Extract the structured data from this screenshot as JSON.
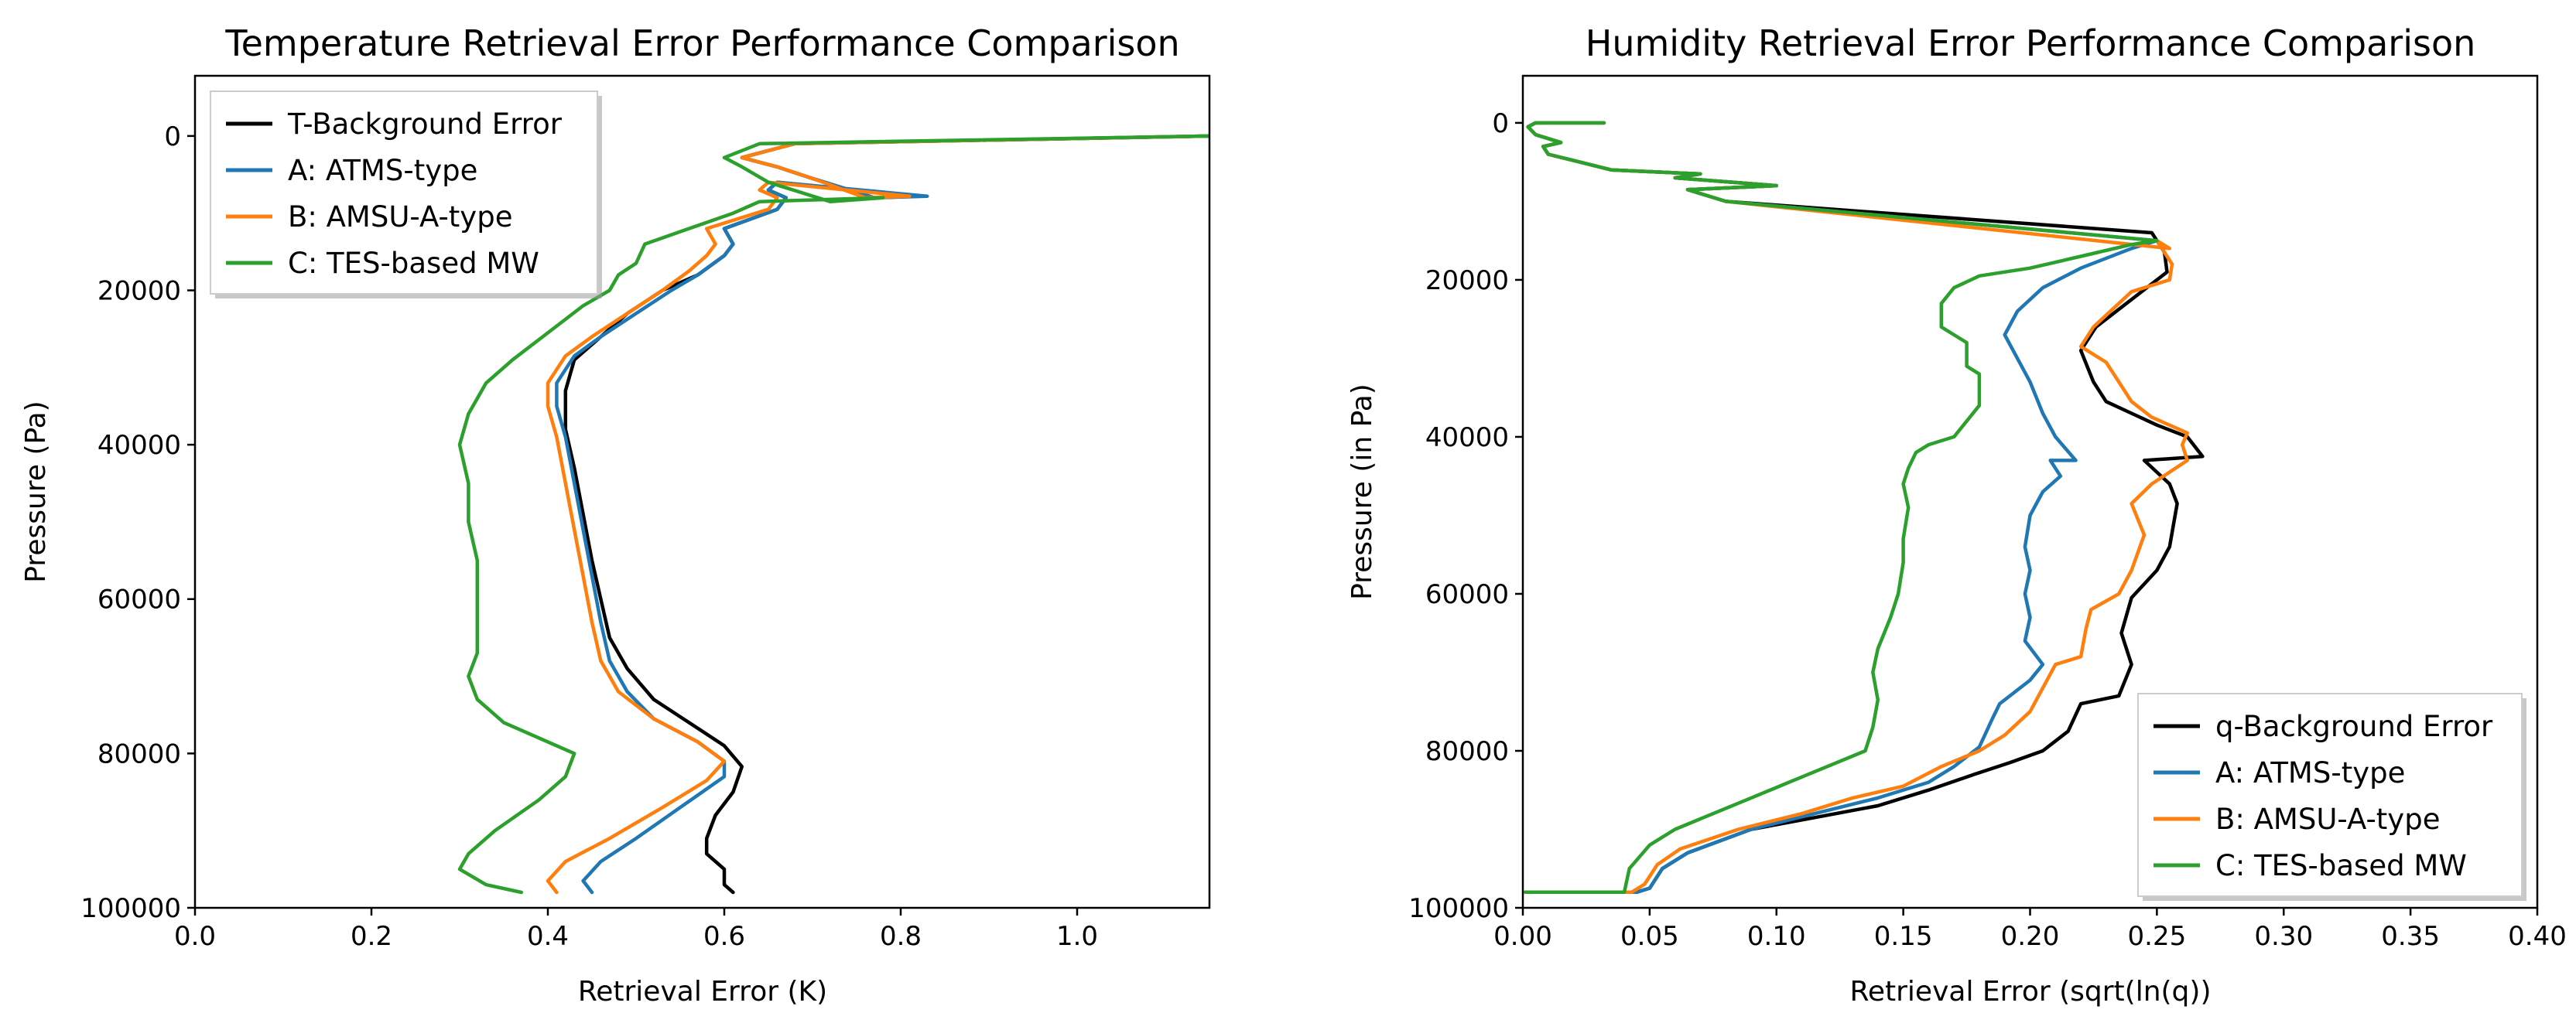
{
  "chart_data": [
    {
      "type": "line",
      "title": "Temperature Retrieval Error Performance Comparison",
      "xlabel": "Retrieval Error (K)",
      "ylabel": "Pressure (Pa)",
      "xlim": [
        0.0,
        1.15
      ],
      "ylim": [
        100000,
        -7800
      ],
      "y_inverted": true,
      "xticks": [
        0.0,
        0.2,
        0.4,
        0.6,
        0.8,
        1.0
      ],
      "xtick_labels": [
        "0.0",
        "0.2",
        "0.4",
        "0.6",
        "0.8",
        "1.0"
      ],
      "yticks": [
        0,
        20000,
        40000,
        60000,
        80000,
        100000
      ],
      "ytick_labels": [
        "0",
        "20000",
        "40000",
        "60000",
        "80000",
        "100000"
      ],
      "legend_position": "upper left",
      "series": [
        {
          "name": "T-Background Error",
          "color": "#000000",
          "x": [
            0.61,
            0.6,
            0.6,
            0.58,
            0.58,
            0.59,
            0.61,
            0.62,
            0.6,
            0.56,
            0.52,
            0.49,
            0.47,
            0.46,
            0.45,
            0.44,
            0.43,
            0.42,
            0.42,
            0.43,
            0.46,
            0.49,
            0.53,
            0.57,
            0.6,
            0.61,
            0.6,
            0.66,
            0.67,
            0.65,
            0.66,
            0.82,
            0.77,
            0.7,
            0.66,
            0.62,
            0.68,
            1.15
          ],
          "y": [
            98000,
            97000,
            95000,
            93000,
            91000,
            88000,
            85000,
            81700,
            79000,
            76000,
            73000,
            69000,
            65000,
            60000,
            55000,
            49000,
            43000,
            38000,
            33000,
            29000,
            26000,
            23000,
            20000,
            18000,
            15500,
            14000,
            12000,
            9500,
            8000,
            7000,
            6000,
            7800,
            8000,
            5500,
            4000,
            2800,
            1000,
            0
          ]
        },
        {
          "name": "A: ATMS-type",
          "color": "#1f77b4",
          "x": [
            0.45,
            0.44,
            0.46,
            0.5,
            0.55,
            0.6,
            0.6,
            0.57,
            0.52,
            0.49,
            0.47,
            0.46,
            0.45,
            0.44,
            0.43,
            0.42,
            0.41,
            0.41,
            0.43,
            0.46,
            0.5,
            0.54,
            0.57,
            0.6,
            0.61,
            0.6,
            0.66,
            0.67,
            0.65,
            0.66,
            0.83,
            0.77,
            0.7,
            0.66,
            0.62,
            0.68,
            1.15
          ],
          "y": [
            98000,
            96500,
            94000,
            91000,
            87000,
            83000,
            81000,
            78500,
            75500,
            72000,
            68000,
            63000,
            57000,
            51000,
            45000,
            39000,
            35000,
            32000,
            28500,
            26000,
            23000,
            20000,
            18000,
            15500,
            14000,
            12000,
            9500,
            8000,
            7000,
            6000,
            7800,
            8000,
            5500,
            4000,
            2800,
            1000,
            0
          ]
        },
        {
          "name": "B: AMSU-A-type",
          "color": "#ff7f0e",
          "x": [
            0.41,
            0.4,
            0.42,
            0.47,
            0.53,
            0.58,
            0.6,
            0.57,
            0.52,
            0.48,
            0.46,
            0.45,
            0.44,
            0.43,
            0.42,
            0.41,
            0.4,
            0.4,
            0.42,
            0.45,
            0.49,
            0.53,
            0.56,
            0.58,
            0.59,
            0.58,
            0.65,
            0.66,
            0.64,
            0.65,
            0.81,
            0.76,
            0.7,
            0.66,
            0.62,
            0.68,
            1.15
          ],
          "y": [
            98000,
            96500,
            94000,
            91000,
            87000,
            83500,
            81000,
            78500,
            75500,
            72000,
            68000,
            63000,
            57000,
            51000,
            45000,
            39000,
            35000,
            32000,
            28500,
            26000,
            23000,
            20000,
            17500,
            15500,
            14000,
            12000,
            9500,
            8000,
            7000,
            6000,
            7800,
            8000,
            5500,
            4000,
            2800,
            1000,
            0
          ]
        },
        {
          "name": "C: TES-based MW",
          "color": "#2ca02c",
          "x": [
            0.37,
            0.33,
            0.3,
            0.31,
            0.34,
            0.39,
            0.42,
            0.43,
            0.39,
            0.35,
            0.32,
            0.31,
            0.32,
            0.32,
            0.32,
            0.32,
            0.31,
            0.31,
            0.3,
            0.31,
            0.33,
            0.36,
            0.4,
            0.44,
            0.47,
            0.48,
            0.5,
            0.51,
            0.56,
            0.61,
            0.64,
            0.78,
            0.72,
            0.65,
            0.62,
            0.6,
            0.64,
            1.15
          ],
          "y": [
            98000,
            97000,
            95000,
            93000,
            90000,
            86000,
            83000,
            80000,
            78000,
            76000,
            73000,
            70000,
            67000,
            64000,
            60000,
            55000,
            50000,
            45000,
            40000,
            36000,
            32000,
            29000,
            25500,
            22000,
            20000,
            18000,
            16500,
            14000,
            12000,
            10000,
            8500,
            8000,
            8500,
            6000,
            4000,
            2800,
            1000,
            0
          ]
        }
      ]
    },
    {
      "type": "line",
      "title": "Humidity Retrieval Error Performance Comparison",
      "xlabel": "Retrieval Error (sqrt(ln(q))",
      "ylabel": "Pressure (in Pa)",
      "xlim": [
        0.0,
        0.4
      ],
      "ylim": [
        100000,
        -6000
      ],
      "y_inverted": true,
      "xticks": [
        0.0,
        0.05,
        0.1,
        0.15,
        0.2,
        0.25,
        0.3,
        0.35,
        0.4
      ],
      "xtick_labels": [
        "0.00",
        "0.05",
        "0.10",
        "0.15",
        "0.20",
        "0.25",
        "0.30",
        "0.35",
        "0.40"
      ],
      "yticks": [
        0,
        20000,
        40000,
        60000,
        80000,
        100000
      ],
      "ytick_labels": [
        "0",
        "20000",
        "40000",
        "60000",
        "80000",
        "100000"
      ],
      "legend_position": "lower right",
      "series": [
        {
          "name": "q-Background Error",
          "color": "#000000",
          "x": [
            0.001,
            0.045,
            0.05,
            0.055,
            0.065,
            0.09,
            0.115,
            0.14,
            0.16,
            0.178,
            0.192,
            0.205,
            0.215,
            0.22,
            0.235,
            0.24,
            0.236,
            0.24,
            0.25,
            0.255,
            0.258,
            0.255,
            0.25,
            0.245,
            0.268,
            0.262,
            0.25,
            0.24,
            0.23,
            0.225,
            0.22,
            0.226,
            0.254,
            0.253,
            0.248,
            0.08,
            0.07,
            0.065,
            0.1,
            0.06,
            0.07,
            0.035,
            0.01,
            0.008,
            0.015,
            0.005,
            0.002,
            0.005,
            0.032
          ],
          "y": [
            98000,
            98000,
            97500,
            95000,
            93000,
            90000,
            88500,
            87000,
            85000,
            83000,
            81500,
            80000,
            77500,
            74000,
            73000,
            69000,
            65000,
            60500,
            57000,
            54000,
            48500,
            46000,
            44500,
            43000,
            42500,
            40000,
            38500,
            37000,
            35500,
            33000,
            29000,
            26000,
            19000,
            16500,
            14000,
            10000,
            9000,
            8500,
            8000,
            7000,
            6500,
            6000,
            4000,
            3000,
            2500,
            1500,
            500,
            0,
            0
          ]
        },
        {
          "name": "A: ATMS-type",
          "color": "#1f77b4",
          "x": [
            0.001,
            0.045,
            0.05,
            0.055,
            0.065,
            0.09,
            0.115,
            0.14,
            0.16,
            0.17,
            0.18,
            0.185,
            0.188,
            0.2,
            0.205,
            0.198,
            0.2,
            0.198,
            0.2,
            0.198,
            0.2,
            0.205,
            0.212,
            0.208,
            0.218,
            0.21,
            0.205,
            0.2,
            0.195,
            0.19,
            0.195,
            0.205,
            0.22,
            0.24,
            0.25,
            0.08,
            0.07,
            0.065,
            0.1,
            0.06,
            0.07,
            0.035,
            0.01,
            0.008,
            0.015,
            0.005,
            0.002,
            0.005,
            0.032
          ],
          "y": [
            98000,
            98000,
            97500,
            95000,
            93000,
            90000,
            88000,
            86000,
            84000,
            82000,
            79500,
            76000,
            74000,
            71000,
            69000,
            66000,
            63000,
            60000,
            57000,
            54000,
            50000,
            47000,
            45000,
            43000,
            43000,
            40000,
            37000,
            33000,
            30000,
            27000,
            24000,
            21000,
            18500,
            16000,
            15000,
            10000,
            9000,
            8500,
            8000,
            7000,
            6500,
            6000,
            4000,
            3000,
            2500,
            1500,
            500,
            0,
            0
          ]
        },
        {
          "name": "B: AMSU-A-type",
          "color": "#ff7f0e",
          "x": [
            0.001,
            0.043,
            0.048,
            0.053,
            0.062,
            0.085,
            0.11,
            0.13,
            0.15,
            0.165,
            0.18,
            0.19,
            0.2,
            0.205,
            0.21,
            0.22,
            0.222,
            0.224,
            0.235,
            0.24,
            0.245,
            0.24,
            0.248,
            0.262,
            0.26,
            0.262,
            0.248,
            0.24,
            0.23,
            0.22,
            0.225,
            0.24,
            0.255,
            0.256,
            0.25,
            0.255,
            0.08,
            0.07,
            0.065,
            0.1,
            0.06,
            0.07,
            0.035,
            0.01,
            0.008,
            0.015,
            0.005,
            0.002,
            0.005,
            0.032
          ],
          "y": [
            98000,
            98000,
            97000,
            94500,
            92500,
            90000,
            88000,
            86000,
            84500,
            82000,
            80000,
            78000,
            75000,
            72000,
            69000,
            68000,
            64500,
            62000,
            60000,
            57000,
            52500,
            48500,
            46000,
            43000,
            41000,
            39500,
            37500,
            35500,
            30500,
            28500,
            26000,
            21500,
            20000,
            18000,
            15000,
            16000,
            10000,
            9000,
            8500,
            8000,
            7000,
            6500,
            6000,
            4000,
            3000,
            2500,
            1500,
            500,
            0,
            0
          ]
        },
        {
          "name": "C: TES-based MW",
          "color": "#2ca02c",
          "x": [
            0.001,
            0.04,
            0.042,
            0.05,
            0.06,
            0.075,
            0.09,
            0.105,
            0.12,
            0.135,
            0.138,
            0.14,
            0.138,
            0.14,
            0.145,
            0.148,
            0.15,
            0.15,
            0.152,
            0.15,
            0.152,
            0.155,
            0.16,
            0.17,
            0.175,
            0.18,
            0.18,
            0.175,
            0.175,
            0.17,
            0.165,
            0.165,
            0.17,
            0.18,
            0.2,
            0.22,
            0.24,
            0.25,
            0.08,
            0.07,
            0.065,
            0.1,
            0.06,
            0.07,
            0.035,
            0.01,
            0.008,
            0.015,
            0.005,
            0.002,
            0.005,
            0.032
          ],
          "y": [
            98000,
            98000,
            95000,
            92000,
            90000,
            88000,
            86000,
            84000,
            82000,
            80000,
            77000,
            73500,
            70000,
            67000,
            63000,
            60000,
            56000,
            53000,
            49000,
            46000,
            44000,
            42000,
            41000,
            40000,
            38000,
            36000,
            32000,
            31000,
            28000,
            27000,
            26000,
            23000,
            21000,
            19500,
            18500,
            17000,
            15500,
            15000,
            10000,
            9000,
            8500,
            8000,
            7000,
            6500,
            6000,
            4000,
            3000,
            2500,
            1500,
            500,
            0,
            0
          ]
        }
      ]
    }
  ]
}
